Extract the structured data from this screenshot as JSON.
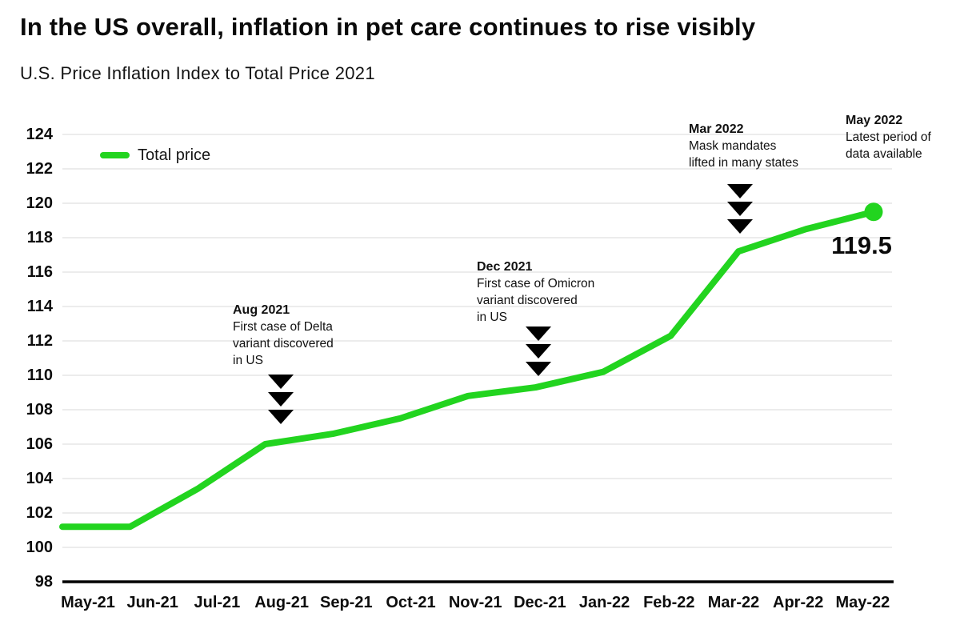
{
  "title": "In the US overall, inflation in pet care continues to rise visibly",
  "subtitle": "U.S. Price Inflation Index to Total Price 2021",
  "legend": {
    "label": "Total price"
  },
  "end_label": "119.5",
  "colors": {
    "line_green": "#22d41f",
    "gridline_gray": "#e6e6e6",
    "axis_black": "#000000",
    "text_black": "#0d0d0d",
    "annotation_arrow_black": "#000000"
  },
  "chart_data": {
    "type": "line",
    "title": "In the US overall, inflation in pet care continues to rise visibly",
    "subtitle": "U.S. Price Inflation Index to Total Price 2021",
    "categories": [
      "May-21",
      "Jun-21",
      "Jul-21",
      "Aug-21",
      "Sep-21",
      "Oct-21",
      "Nov-21",
      "Dec-21",
      "Jan-22",
      "Feb-22",
      "Mar-22",
      "Apr-22",
      "May-22"
    ],
    "series": [
      {
        "name": "Total price",
        "color": "#22d41f",
        "values": [
          101.2,
          101.2,
          103.4,
          106.0,
          106.6,
          107.5,
          108.8,
          109.3,
          110.2,
          112.3,
          117.2,
          118.5,
          119.5
        ]
      }
    ],
    "xlabel": "",
    "ylabel": "",
    "ylim": [
      98,
      124
    ],
    "ytick_step": 2,
    "grid": true,
    "legend_position": "top-left",
    "end_point_label": "119.5",
    "end_point_marker": "filled-circle",
    "annotations": [
      {
        "title": "Aug 2021",
        "lines": [
          "First case of Delta",
          "variant discovered",
          "in US"
        ],
        "target": "Aug-21",
        "marker_icon": "triple-down-triangles"
      },
      {
        "title": "Dec 2021",
        "lines": [
          "First case of Omicron",
          "variant discovered",
          "in US"
        ],
        "target": "Dec-21",
        "marker_icon": "triple-down-triangles"
      },
      {
        "title": "Mar 2022",
        "lines": [
          "Mask mandates",
          "lifted in many states"
        ],
        "target": "Mar-22",
        "marker_icon": "triple-down-triangles"
      },
      {
        "title": "May 2022",
        "lines": [
          "Latest period of",
          "data available"
        ],
        "target": "May-22",
        "marker_icon": "none"
      }
    ]
  }
}
